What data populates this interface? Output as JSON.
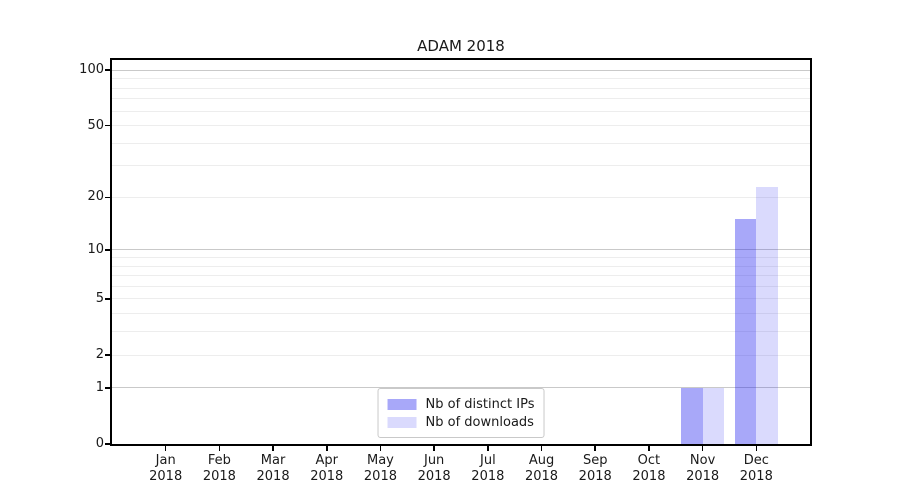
{
  "figure": {
    "background": "#ffffff"
  },
  "chart_data": {
    "type": "bar",
    "title": "ADAM 2018",
    "x": {
      "months": [
        "Jan",
        "Feb",
        "Mar",
        "Apr",
        "May",
        "Jun",
        "Jul",
        "Aug",
        "Sep",
        "Oct",
        "Nov",
        "Dec"
      ],
      "year": "2018"
    },
    "series": [
      {
        "name": "Nb of distinct IPs",
        "color": "rgba(25,25,240,0.38)",
        "values": [
          0,
          0,
          0,
          0,
          0,
          0,
          0,
          0,
          0,
          0,
          1,
          15
        ]
      },
      {
        "name": "Nb of downloads",
        "color": "rgba(25,25,240,0.16)",
        "values": [
          0,
          0,
          0,
          0,
          0,
          0,
          0,
          0,
          0,
          0,
          1,
          23
        ]
      }
    ],
    "y_axis": {
      "scale": "log1p",
      "tick_labels": [
        0,
        1,
        2,
        5,
        10,
        20,
        50,
        100
      ],
      "major_gridlines": [
        1,
        10,
        100
      ],
      "minor_gridlines": [
        2,
        3,
        4,
        5,
        6,
        7,
        8,
        9,
        20,
        30,
        40,
        50,
        60,
        70,
        80,
        90
      ],
      "range": [
        0,
        113
      ]
    },
    "legend": {
      "position": "lower center",
      "items": [
        "Nb of distinct IPs",
        "Nb of downloads"
      ]
    },
    "grid": true
  },
  "colors": {
    "grid_minor": "#ededed",
    "grid_major": "#c9c9c9",
    "axis": "#000000",
    "text": "#1a1a1a",
    "legend_border": "#c9c9c9",
    "legend_bg": "#ffffff"
  }
}
